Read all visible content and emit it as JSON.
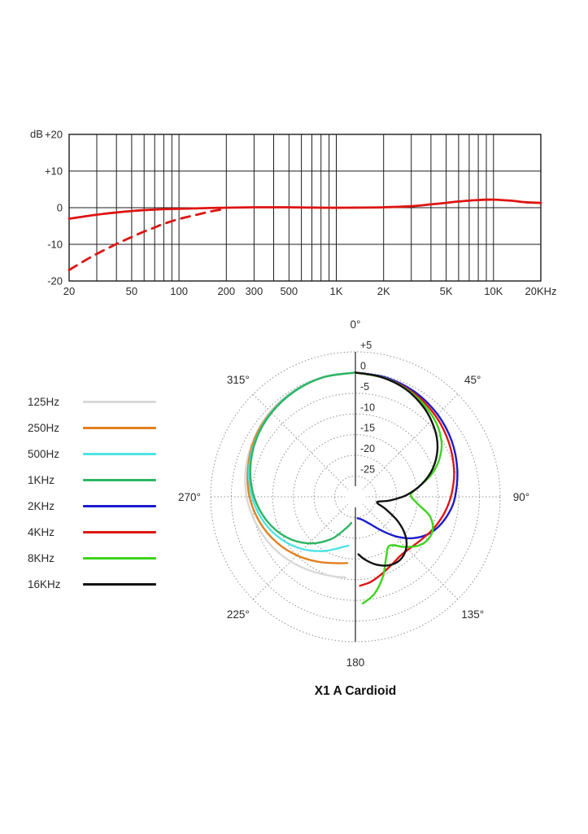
{
  "colors": {
    "curve_red": "#dd1512",
    "grid_dark": "#1c1c1c",
    "grid_gray": "#8f8f8f",
    "text": "#2b2b2b"
  },
  "legend": {
    "items": [
      {
        "label": "125Hz",
        "color": "#d9d9d9"
      },
      {
        "label": "250Hz",
        "color": "#e2801f"
      },
      {
        "label": "500Hz",
        "color": "#4fe3e6"
      },
      {
        "label": "1KHz",
        "color": "#2db563"
      },
      {
        "label": "2KHz",
        "color": "#1c1cce"
      },
      {
        "label": "4KHz",
        "color": "#de1612"
      },
      {
        "label": "8KHz",
        "color": "#3ed41c"
      },
      {
        "label": "16KHz",
        "color": "#121212"
      }
    ]
  },
  "chart_data": [
    {
      "id": "frequency-response",
      "type": "line",
      "x_scale": "log",
      "xlim": [
        20,
        20000
      ],
      "ylim": [
        -20,
        20
      ],
      "ylabel": "dB",
      "grid": true,
      "grid_x_values": [
        20,
        30,
        40,
        50,
        60,
        70,
        80,
        90,
        100,
        200,
        300,
        400,
        500,
        600,
        700,
        800,
        900,
        1000,
        2000,
        3000,
        4000,
        5000,
        6000,
        7000,
        8000,
        9000,
        10000,
        20000
      ],
      "x_ticks": [
        {
          "value": 20,
          "label": "20"
        },
        {
          "value": 50,
          "label": "50"
        },
        {
          "value": 100,
          "label": "100"
        },
        {
          "value": 200,
          "label": "200"
        },
        {
          "value": 300,
          "label": "300"
        },
        {
          "value": 500,
          "label": "500"
        },
        {
          "value": 1000,
          "label": "1K"
        },
        {
          "value": 2000,
          "label": "2K"
        },
        {
          "value": 5000,
          "label": "5K"
        },
        {
          "value": 10000,
          "label": "10K"
        },
        {
          "value": 20000,
          "label": "20KHz"
        }
      ],
      "y_ticks": [
        {
          "value": 20,
          "label": "+20"
        },
        {
          "value": 10,
          "label": "+10"
        },
        {
          "value": 0,
          "label": "0"
        },
        {
          "value": -10,
          "label": "-10"
        },
        {
          "value": -20,
          "label": "-20"
        }
      ],
      "series": [
        {
          "name": "response",
          "color": "#dd1512",
          "dash": "none",
          "points": [
            [
              20,
              -3
            ],
            [
              30,
              -1.9
            ],
            [
              40,
              -1.3
            ],
            [
              50,
              -0.9
            ],
            [
              70,
              -0.5
            ],
            [
              100,
              -0.3
            ],
            [
              150,
              -0.1
            ],
            [
              200,
              0
            ],
            [
              300,
              0.1
            ],
            [
              500,
              0.1
            ],
            [
              800,
              0
            ],
            [
              1200,
              0
            ],
            [
              2000,
              0.1
            ],
            [
              3000,
              0.4
            ],
            [
              4000,
              0.9
            ],
            [
              5000,
              1.3
            ],
            [
              6000,
              1.7
            ],
            [
              8000,
              2.1
            ],
            [
              10000,
              2.2
            ],
            [
              13000,
              1.9
            ],
            [
              16000,
              1.5
            ],
            [
              20000,
              1.3
            ]
          ]
        },
        {
          "name": "low-cut response",
          "color": "#dd1512",
          "dash": "11 8",
          "points": [
            [
              20,
              -17
            ],
            [
              25,
              -14.5
            ],
            [
              30,
              -12.6
            ],
            [
              40,
              -9.9
            ],
            [
              50,
              -8
            ],
            [
              60,
              -6.5
            ],
            [
              70,
              -5.4
            ],
            [
              80,
              -4.4
            ],
            [
              100,
              -3.1
            ],
            [
              130,
              -1.9
            ],
            [
              160,
              -1
            ],
            [
              200,
              -0.3
            ]
          ]
        }
      ]
    },
    {
      "id": "polar-pattern",
      "type": "polar",
      "title": "X1 A Cardioid",
      "r_axis": {
        "max": 5,
        "min": -25,
        "center": -30,
        "step": 5
      },
      "radial_ticks": [
        {
          "value": 5,
          "label": "+5"
        },
        {
          "value": 0,
          "label": "0"
        },
        {
          "value": -5,
          "label": "-5"
        },
        {
          "value": -10,
          "label": "-10"
        },
        {
          "value": -15,
          "label": "-15"
        },
        {
          "value": -20,
          "label": "-20"
        },
        {
          "value": -25,
          "label": "-25"
        }
      ],
      "angle_labels": [
        {
          "angle": 0,
          "label": "0°"
        },
        {
          "angle": 45,
          "label": "45°"
        },
        {
          "angle": 90,
          "label": "90°"
        },
        {
          "angle": 135,
          "label": "135°"
        },
        {
          "angle": 180,
          "label": "180"
        },
        {
          "angle": 225,
          "label": "225°"
        },
        {
          "angle": 270,
          "label": "270°"
        },
        {
          "angle": 315,
          "label": "315°"
        }
      ],
      "series": [
        {
          "name": "125Hz",
          "color": "#d9d9d9",
          "points": [
            [
              360,
              0
            ],
            [
              345,
              -0.1
            ],
            [
              330,
              -0.4
            ],
            [
              315,
              -0.9
            ],
            [
              300,
              -1.7
            ],
            [
              285,
              -2.6
            ],
            [
              270,
              -3.7
            ],
            [
              255,
              -5.1
            ],
            [
              240,
              -6.5
            ],
            [
              225,
              -7.9
            ],
            [
              210,
              -9.2
            ],
            [
              195,
              -10.1
            ],
            [
              187,
              -10.4
            ]
          ]
        },
        {
          "name": "250Hz",
          "color": "#e2801f",
          "points": [
            [
              360,
              0
            ],
            [
              345,
              -0.1
            ],
            [
              330,
              -0.5
            ],
            [
              315,
              -1.1
            ],
            [
              300,
              -1.9
            ],
            [
              285,
              -3.1
            ],
            [
              270,
              -4.4
            ],
            [
              255,
              -6.1
            ],
            [
              240,
              -8
            ],
            [
              225,
              -10
            ],
            [
              210,
              -11.9
            ],
            [
              195,
              -13.4
            ],
            [
              187,
              -13.9
            ]
          ]
        },
        {
          "name": "500Hz",
          "color": "#4fe3e6",
          "points": [
            [
              360,
              0
            ],
            [
              345,
              -0.1
            ],
            [
              330,
              -0.5
            ],
            [
              315,
              -1.2
            ],
            [
              300,
              -2.2
            ],
            [
              285,
              -3.4
            ],
            [
              270,
              -5
            ],
            [
              255,
              -7
            ],
            [
              240,
              -9.4
            ],
            [
              225,
              -12.1
            ],
            [
              210,
              -14.9
            ],
            [
              195,
              -17.4
            ],
            [
              188,
              -18.1
            ]
          ]
        },
        {
          "name": "1KHz",
          "color": "#2db563",
          "points": [
            [
              360,
              0
            ],
            [
              345,
              -0.1
            ],
            [
              330,
              -0.6
            ],
            [
              315,
              -1.3
            ],
            [
              300,
              -2.3
            ],
            [
              285,
              -3.7
            ],
            [
              270,
              -5.5
            ],
            [
              255,
              -7.8
            ],
            [
              240,
              -10.6
            ],
            [
              225,
              -14.1
            ],
            [
              210,
              -18.2
            ],
            [
              196,
              -22.2
            ],
            [
              189,
              -23.6
            ]
          ]
        },
        {
          "name": "2KHz",
          "color": "#1c1cce",
          "points": [
            [
              0,
              0
            ],
            [
              15,
              -0.3
            ],
            [
              30,
              -0.9
            ],
            [
              45,
              -1.9
            ],
            [
              60,
              -3.1
            ],
            [
              75,
              -4.5
            ],
            [
              90,
              -5.9
            ],
            [
              100,
              -7.1
            ],
            [
              110,
              -8.7
            ],
            [
              118,
              -10.5
            ],
            [
              126,
              -13
            ],
            [
              134,
              -16.2
            ],
            [
              142,
              -19.6
            ],
            [
              152,
              -22.6
            ],
            [
              163,
              -24.2
            ],
            [
              174,
              -24.8
            ]
          ]
        },
        {
          "name": "4KHz",
          "color": "#de1612",
          "points": [
            [
              0,
              0
            ],
            [
              15,
              -0.5
            ],
            [
              30,
              -1.3
            ],
            [
              45,
              -2.5
            ],
            [
              60,
              -3.9
            ],
            [
              75,
              -5.3
            ],
            [
              88,
              -6.7
            ],
            [
              100,
              -8.1
            ],
            [
              112,
              -9.6
            ],
            [
              122,
              -10.9
            ],
            [
              132,
              -11.8
            ],
            [
              142,
              -12.1
            ],
            [
              152,
              -11.4
            ],
            [
              162,
              -10.2
            ],
            [
              170,
              -9.1
            ],
            [
              177,
              -8.5
            ]
          ]
        },
        {
          "name": "8KHz",
          "color": "#3ed41c",
          "points": [
            [
              0,
              0
            ],
            [
              15,
              -0.5
            ],
            [
              30,
              -1.6
            ],
            [
              45,
              -3.2
            ],
            [
              57,
              -5.2
            ],
            [
              66,
              -7.8
            ],
            [
              74,
              -11
            ],
            [
              81,
              -14.5
            ],
            [
              88,
              -16.6
            ],
            [
              96,
              -15
            ],
            [
              104,
              -11.6
            ],
            [
              112,
              -9.8
            ],
            [
              120,
              -9.6
            ],
            [
              128,
              -10.8
            ],
            [
              136,
              -13.2
            ],
            [
              145,
              -15.6
            ],
            [
              153,
              -13.6
            ],
            [
              161,
              -9.6
            ],
            [
              169,
              -6.1
            ],
            [
              176,
              -4.2
            ]
          ]
        },
        {
          "name": "16KHz",
          "color": "#121212",
          "points": [
            [
              0,
              0
            ],
            [
              12,
              -0.4
            ],
            [
              25,
              -1.3
            ],
            [
              38,
              -2.9
            ],
            [
              50,
              -4.9
            ],
            [
              60,
              -7.1
            ],
            [
              70,
              -10.1
            ],
            [
              79,
              -13.6
            ],
            [
              88,
              -17.6
            ],
            [
              96,
              -21.6
            ],
            [
              104,
              -24.6
            ],
            [
              112,
              -22.1
            ],
            [
              120,
              -18.1
            ],
            [
              128,
              -14.6
            ],
            [
              136,
              -12.4
            ],
            [
              145,
              -11.3
            ],
            [
              154,
              -11.6
            ],
            [
              163,
              -12.9
            ],
            [
              171,
              -14.6
            ],
            [
              177,
              -16.1
            ]
          ]
        }
      ]
    }
  ]
}
